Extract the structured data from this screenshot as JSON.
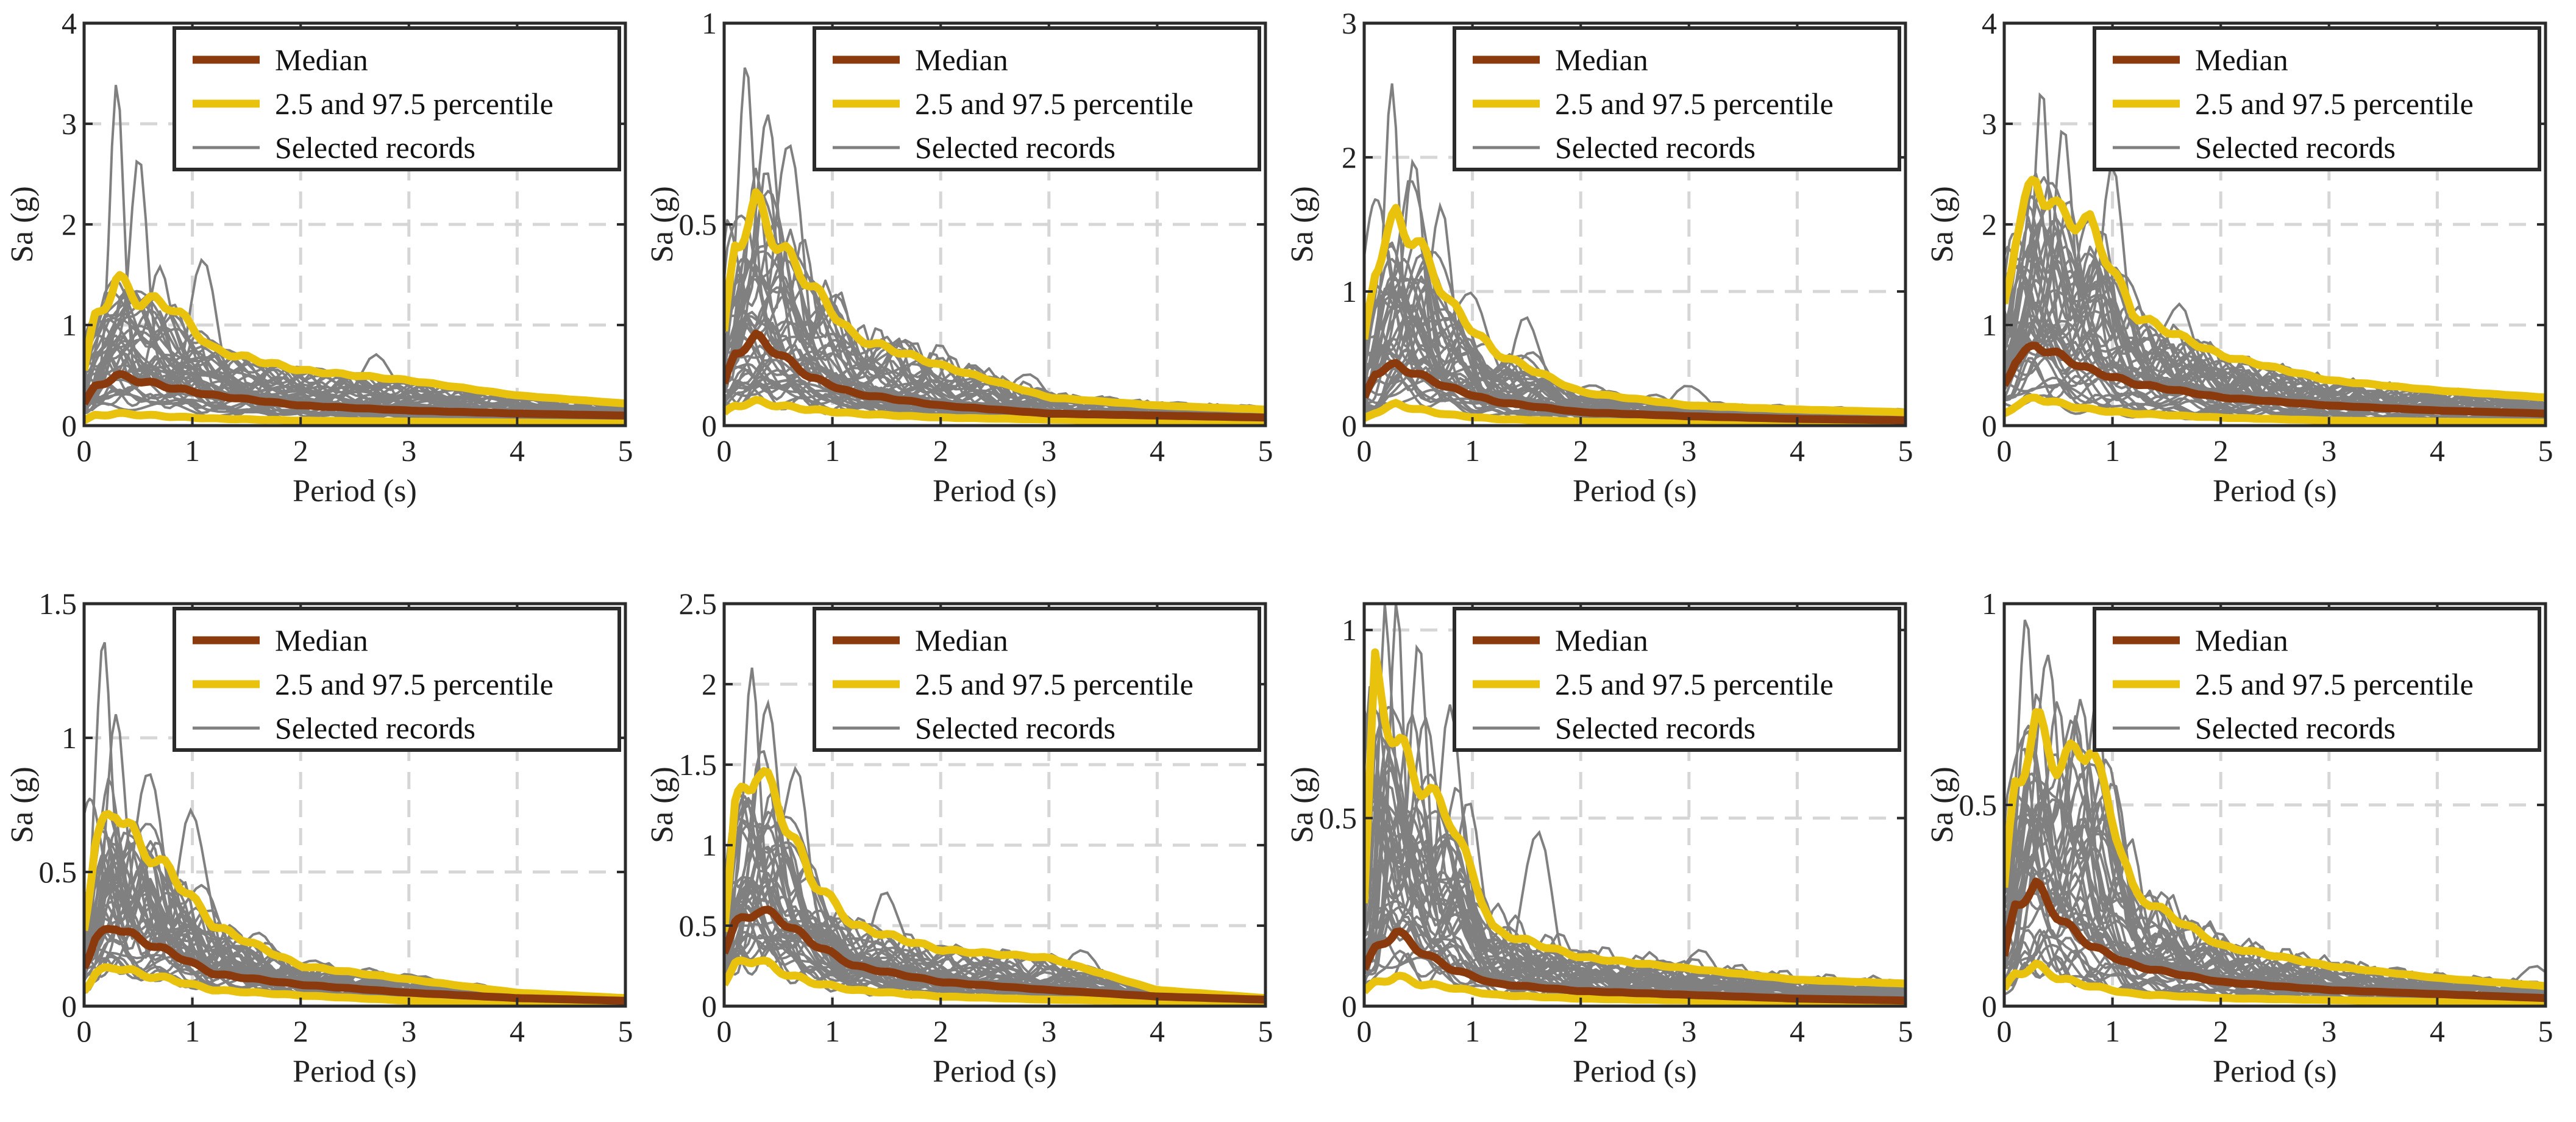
{
  "colors": {
    "median": "#8b3a0e",
    "percentile": "#e8c20c",
    "records": "#808080",
    "grid": "#d6d6d6",
    "axis": "#2b2b2b"
  },
  "chart_data": [
    {
      "type": "line",
      "xlabel": "Period (s)",
      "ylabel": "Sa (g)",
      "xlim": [
        0,
        5
      ],
      "ylim": [
        0,
        4
      ],
      "xticks": [
        0,
        1,
        2,
        3,
        4,
        5
      ],
      "yticks": [
        0,
        1,
        2,
        3,
        4
      ],
      "grid": true,
      "legend_position": "top-right",
      "legend": [
        "Median",
        "2.5 and 97.5 percentile",
        "Selected records"
      ],
      "series": [
        {
          "name": "Median",
          "x": [
            0,
            0.1,
            0.3,
            0.5,
            0.8,
            1.2,
            2,
            3,
            4,
            5
          ],
          "values": [
            0.22,
            0.38,
            0.5,
            0.45,
            0.38,
            0.3,
            0.2,
            0.15,
            0.12,
            0.1
          ]
        },
        {
          "name": "2.5 and 97.5 percentile",
          "x": [
            0,
            0.1,
            0.3,
            0.5,
            0.8,
            1.2,
            2,
            3,
            4,
            5
          ],
          "values": [
            0.55,
            1.05,
            1.45,
            1.25,
            1.2,
            0.75,
            0.55,
            0.45,
            0.3,
            0.22
          ]
        },
        {
          "name": "",
          "x": [
            0,
            0.1,
            0.3,
            0.5,
            0.8,
            1.2,
            2,
            3,
            4,
            5
          ],
          "values": [
            0.05,
            0.1,
            0.12,
            0.11,
            0.09,
            0.07,
            0.05,
            0.04,
            0.03,
            0.02
          ]
        }
      ],
      "record_peaks": [
        {
          "x": 0.3,
          "y": 3.3
        },
        {
          "x": 0.5,
          "y": 2.6
        },
        {
          "x": 1.1,
          "y": 1.7
        },
        {
          "x": 0.7,
          "y": 1.5
        },
        {
          "x": 2.7,
          "y": 0.7
        }
      ]
    },
    {
      "type": "line",
      "xlabel": "Period (s)",
      "ylabel": "Sa (g)",
      "xlim": [
        0,
        5
      ],
      "ylim": [
        0,
        1
      ],
      "xticks": [
        0,
        1,
        2,
        3,
        4,
        5
      ],
      "yticks": [
        0,
        0.5,
        1
      ],
      "grid": true,
      "legend_position": "top-right",
      "legend": [
        "Median",
        "2.5 and 97.5 percentile",
        "Selected records"
      ],
      "series": [
        {
          "name": "Median",
          "x": [
            0,
            0.1,
            0.3,
            0.5,
            0.8,
            1.2,
            2,
            3,
            4,
            5
          ],
          "values": [
            0.1,
            0.18,
            0.22,
            0.18,
            0.12,
            0.08,
            0.05,
            0.03,
            0.025,
            0.02
          ]
        },
        {
          "name": "2.5 and 97.5 percentile",
          "x": [
            0,
            0.1,
            0.3,
            0.5,
            0.8,
            1.2,
            2,
            3,
            4,
            5
          ],
          "values": [
            0.22,
            0.45,
            0.55,
            0.45,
            0.35,
            0.22,
            0.15,
            0.07,
            0.05,
            0.04
          ]
        },
        {
          "name": "",
          "x": [
            0,
            0.1,
            0.3,
            0.5,
            0.8,
            1.2,
            2,
            3,
            4,
            5
          ],
          "values": [
            0.03,
            0.05,
            0.06,
            0.05,
            0.04,
            0.03,
            0.02,
            0.015,
            0.01,
            0.01
          ]
        }
      ],
      "record_peaks": [
        {
          "x": 0.2,
          "y": 0.93
        },
        {
          "x": 0.4,
          "y": 0.8
        },
        {
          "x": 0.6,
          "y": 0.72
        },
        {
          "x": 2.0,
          "y": 0.2
        },
        {
          "x": 2.8,
          "y": 0.13
        }
      ]
    },
    {
      "type": "line",
      "xlabel": "Period (s)",
      "ylabel": "Sa (g)",
      "xlim": [
        0,
        5
      ],
      "ylim": [
        0,
        3
      ],
      "xticks": [
        0,
        1,
        2,
        3,
        4,
        5
      ],
      "yticks": [
        0,
        1,
        2,
        3
      ],
      "grid": true,
      "legend_position": "top-right",
      "legend": [
        "Median",
        "2.5 and 97.5 percentile",
        "Selected records"
      ],
      "series": [
        {
          "name": "Median",
          "x": [
            0,
            0.1,
            0.3,
            0.5,
            0.8,
            1.2,
            2,
            3,
            4,
            5
          ],
          "values": [
            0.2,
            0.4,
            0.45,
            0.38,
            0.28,
            0.18,
            0.1,
            0.07,
            0.05,
            0.04
          ]
        },
        {
          "name": "2.5 and 97.5 percentile",
          "x": [
            0,
            0.1,
            0.3,
            0.5,
            0.8,
            1.2,
            2,
            3,
            4,
            5
          ],
          "values": [
            0.6,
            1.2,
            1.55,
            1.35,
            0.9,
            0.55,
            0.25,
            0.15,
            0.12,
            0.1
          ]
        },
        {
          "name": "",
          "x": [
            0,
            0.1,
            0.3,
            0.5,
            0.8,
            1.2,
            2,
            3,
            4,
            5
          ],
          "values": [
            0.05,
            0.1,
            0.16,
            0.12,
            0.08,
            0.05,
            0.03,
            0.02,
            0.015,
            0.01
          ]
        }
      ],
      "record_peaks": [
        {
          "x": 0.25,
          "y": 2.55
        },
        {
          "x": 0.45,
          "y": 2.0
        },
        {
          "x": 0.7,
          "y": 1.6
        },
        {
          "x": 1.5,
          "y": 0.8
        },
        {
          "x": 3.0,
          "y": 0.3
        }
      ]
    },
    {
      "type": "line",
      "xlabel": "Period (s)",
      "ylabel": "Sa (g)",
      "xlim": [
        0,
        5
      ],
      "ylim": [
        0,
        4
      ],
      "xticks": [
        0,
        1,
        2,
        3,
        4,
        5
      ],
      "yticks": [
        0,
        1,
        2,
        3,
        4
      ],
      "grid": true,
      "legend_position": "top-right",
      "legend": [
        "Median",
        "2.5 and 97.5 percentile",
        "Selected records"
      ],
      "series": [
        {
          "name": "Median",
          "x": [
            0,
            0.1,
            0.3,
            0.5,
            0.8,
            1.2,
            2,
            3,
            4,
            5
          ],
          "values": [
            0.4,
            0.65,
            0.8,
            0.7,
            0.55,
            0.42,
            0.28,
            0.2,
            0.15,
            0.12
          ]
        },
        {
          "name": "2.5 and 97.5 percentile",
          "x": [
            0,
            0.1,
            0.3,
            0.5,
            0.8,
            1.2,
            2,
            3,
            4,
            5
          ],
          "values": [
            1.2,
            1.9,
            2.45,
            2.1,
            2.0,
            1.1,
            0.7,
            0.45,
            0.35,
            0.28
          ]
        },
        {
          "name": "",
          "x": [
            0,
            0.1,
            0.3,
            0.5,
            0.8,
            1.2,
            2,
            3,
            4,
            5
          ],
          "values": [
            0.12,
            0.2,
            0.28,
            0.22,
            0.16,
            0.12,
            0.08,
            0.05,
            0.04,
            0.03
          ]
        }
      ],
      "record_peaks": [
        {
          "x": 0.35,
          "y": 3.3
        },
        {
          "x": 0.55,
          "y": 2.9
        },
        {
          "x": 1.0,
          "y": 2.55
        },
        {
          "x": 0.8,
          "y": 2.1
        },
        {
          "x": 1.6,
          "y": 1.2
        }
      ]
    },
    {
      "type": "line",
      "xlabel": "Period (s)",
      "ylabel": "Sa (g)",
      "xlim": [
        0,
        5
      ],
      "ylim": [
        0,
        1.5
      ],
      "xticks": [
        0,
        1,
        2,
        3,
        4,
        5
      ],
      "yticks": [
        0,
        0.5,
        1,
        1.5
      ],
      "grid": true,
      "legend_position": "top-right",
      "legend": [
        "Median",
        "2.5 and 97.5 percentile",
        "Selected records"
      ],
      "series": [
        {
          "name": "Median",
          "x": [
            0,
            0.1,
            0.3,
            0.5,
            0.8,
            1.2,
            2,
            3,
            4,
            5
          ],
          "values": [
            0.15,
            0.25,
            0.3,
            0.25,
            0.2,
            0.12,
            0.08,
            0.05,
            0.03,
            0.02
          ]
        },
        {
          "name": "2.5 and 97.5 percentile",
          "x": [
            0,
            0.1,
            0.3,
            0.5,
            0.8,
            1.2,
            2,
            3,
            4,
            5
          ],
          "values": [
            0.3,
            0.6,
            0.75,
            0.6,
            0.5,
            0.3,
            0.15,
            0.1,
            0.05,
            0.03
          ]
        },
        {
          "name": "",
          "x": [
            0,
            0.1,
            0.3,
            0.5,
            0.8,
            1.2,
            2,
            3,
            4,
            5
          ],
          "values": [
            0.06,
            0.12,
            0.15,
            0.12,
            0.1,
            0.06,
            0.04,
            0.02,
            0.015,
            0.01
          ]
        }
      ],
      "record_peaks": [
        {
          "x": 0.18,
          "y": 1.42
        },
        {
          "x": 0.3,
          "y": 1.05
        },
        {
          "x": 0.6,
          "y": 0.9
        },
        {
          "x": 1.0,
          "y": 0.72
        },
        {
          "x": 3.0,
          "y": 0.12
        }
      ]
    },
    {
      "type": "line",
      "xlabel": "Period (s)",
      "ylabel": "Sa (g)",
      "xlim": [
        0,
        5
      ],
      "ylim": [
        0,
        2.5
      ],
      "xticks": [
        0,
        1,
        2,
        3,
        4,
        5
      ],
      "yticks": [
        0,
        0.5,
        1,
        1.5,
        2,
        2.5
      ],
      "grid": true,
      "legend_position": "top-right",
      "legend": [
        "Median",
        "2.5 and 97.5 percentile",
        "Selected records"
      ],
      "series": [
        {
          "name": "Median",
          "x": [
            0,
            0.1,
            0.3,
            0.5,
            0.8,
            1.2,
            2,
            3,
            4,
            5
          ],
          "values": [
            0.35,
            0.5,
            0.6,
            0.55,
            0.4,
            0.25,
            0.15,
            0.1,
            0.06,
            0.04
          ]
        },
        {
          "name": "2.5 and 97.5 percentile",
          "x": [
            0,
            0.1,
            0.3,
            0.5,
            0.8,
            1.2,
            2,
            3,
            4,
            5
          ],
          "values": [
            0.5,
            1.2,
            1.5,
            1.25,
            0.8,
            0.5,
            0.35,
            0.3,
            0.1,
            0.05
          ]
        },
        {
          "name": "",
          "x": [
            0,
            0.1,
            0.3,
            0.5,
            0.8,
            1.2,
            2,
            3,
            4,
            5
          ],
          "values": [
            0.15,
            0.25,
            0.3,
            0.22,
            0.15,
            0.1,
            0.06,
            0.04,
            0.03,
            0.02
          ]
        }
      ],
      "record_peaks": [
        {
          "x": 0.25,
          "y": 2.1
        },
        {
          "x": 0.4,
          "y": 1.95
        },
        {
          "x": 0.65,
          "y": 1.5
        },
        {
          "x": 1.5,
          "y": 0.7
        },
        {
          "x": 3.3,
          "y": 0.35
        }
      ]
    },
    {
      "type": "line",
      "xlabel": "Period (s)",
      "ylabel": "Sa (g)",
      "xlim": [
        0,
        5
      ],
      "ylim": [
        0,
        1.07
      ],
      "xticks": [
        0,
        1,
        2,
        3,
        4,
        5
      ],
      "yticks": [
        0,
        0.5,
        1
      ],
      "grid": true,
      "legend_position": "top-right",
      "legend": [
        "Median",
        "2.5 and 97.5 percentile",
        "Selected records"
      ],
      "series": [
        {
          "name": "Median",
          "x": [
            0,
            0.1,
            0.3,
            0.5,
            0.8,
            1.2,
            2,
            3,
            4,
            5
          ],
          "values": [
            0.1,
            0.15,
            0.2,
            0.15,
            0.1,
            0.06,
            0.04,
            0.03,
            0.02,
            0.015
          ]
        },
        {
          "name": "2.5 and 97.5 percentile",
          "x": [
            0,
            0.1,
            0.3,
            0.5,
            0.8,
            1.2,
            2,
            3,
            4,
            5
          ],
          "values": [
            0.28,
            0.88,
            0.7,
            0.6,
            0.5,
            0.2,
            0.13,
            0.1,
            0.07,
            0.06
          ]
        },
        {
          "name": "",
          "x": [
            0,
            0.1,
            0.3,
            0.5,
            0.8,
            1.2,
            2,
            3,
            4,
            5
          ],
          "values": [
            0.04,
            0.06,
            0.08,
            0.06,
            0.05,
            0.03,
            0.02,
            0.015,
            0.01,
            0.01
          ]
        }
      ],
      "record_peaks": [
        {
          "x": 0.3,
          "y": 1.05
        },
        {
          "x": 0.5,
          "y": 0.95
        },
        {
          "x": 0.8,
          "y": 0.8
        },
        {
          "x": 1.6,
          "y": 0.47
        },
        {
          "x": 3.1,
          "y": 0.15
        }
      ]
    },
    {
      "type": "line",
      "xlabel": "Period (s)",
      "ylabel": "Sa (g)",
      "xlim": [
        0,
        5
      ],
      "ylim": [
        0,
        1
      ],
      "xticks": [
        0,
        1,
        2,
        3,
        4,
        5
      ],
      "yticks": [
        0,
        0.5,
        1
      ],
      "grid": true,
      "legend_position": "top-right",
      "legend": [
        "Median",
        "2.5 and 97.5 percentile",
        "Selected records"
      ],
      "series": [
        {
          "name": "Median",
          "x": [
            0,
            0.1,
            0.3,
            0.5,
            0.8,
            1.2,
            2,
            3,
            4,
            5
          ],
          "values": [
            0.12,
            0.25,
            0.3,
            0.22,
            0.15,
            0.1,
            0.06,
            0.04,
            0.03,
            0.02
          ]
        },
        {
          "name": "2.5 and 97.5 percentile",
          "x": [
            0,
            0.1,
            0.3,
            0.5,
            0.8,
            1.2,
            2,
            3,
            4,
            5
          ],
          "values": [
            0.28,
            0.55,
            0.7,
            0.6,
            0.65,
            0.28,
            0.15,
            0.1,
            0.07,
            0.05
          ]
        },
        {
          "name": "",
          "x": [
            0,
            0.1,
            0.3,
            0.5,
            0.8,
            1.2,
            2,
            3,
            4,
            5
          ],
          "values": [
            0.04,
            0.08,
            0.1,
            0.07,
            0.05,
            0.03,
            0.02,
            0.015,
            0.01,
            0.01
          ]
        }
      ],
      "record_peaks": [
        {
          "x": 0.2,
          "y": 1.0
        },
        {
          "x": 0.4,
          "y": 0.9
        },
        {
          "x": 0.7,
          "y": 0.75
        },
        {
          "x": 2.0,
          "y": 0.18
        },
        {
          "x": 4.9,
          "y": 0.1
        }
      ]
    }
  ]
}
